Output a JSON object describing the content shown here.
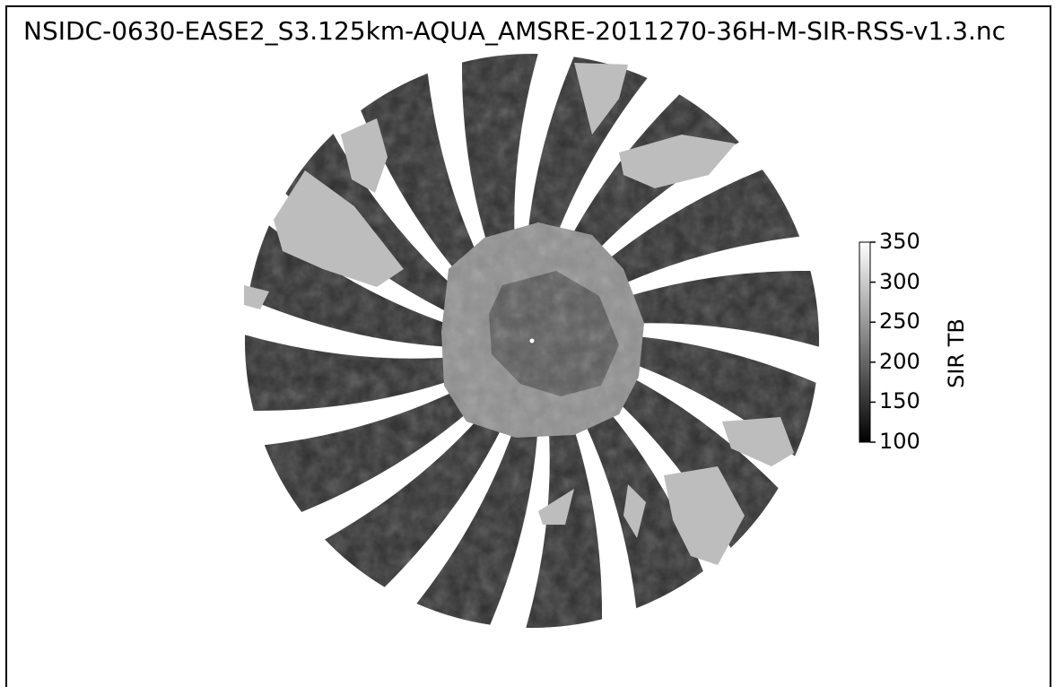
{
  "title": "NSIDC-0630-EASE2_S3.125km-AQUA_AMSRE-2011270-36H-M-SIR-RSS-v1.3.nc",
  "colorbar": {
    "label": "SIR TB",
    "ticks": [
      "350",
      "300",
      "250",
      "200",
      "150",
      "100"
    ],
    "min": 100,
    "max": 350,
    "colormap": "grayscale",
    "color_low": "#000000",
    "color_high": "#ffffff"
  },
  "colors": {
    "ocean": "#3a3a3a",
    "swath_dark": "#2e2e2e",
    "land_ice": "#bdbdbd",
    "antarctica_outer": "#8f8f8f",
    "antarctica_inner": "#5a5a5a"
  }
}
